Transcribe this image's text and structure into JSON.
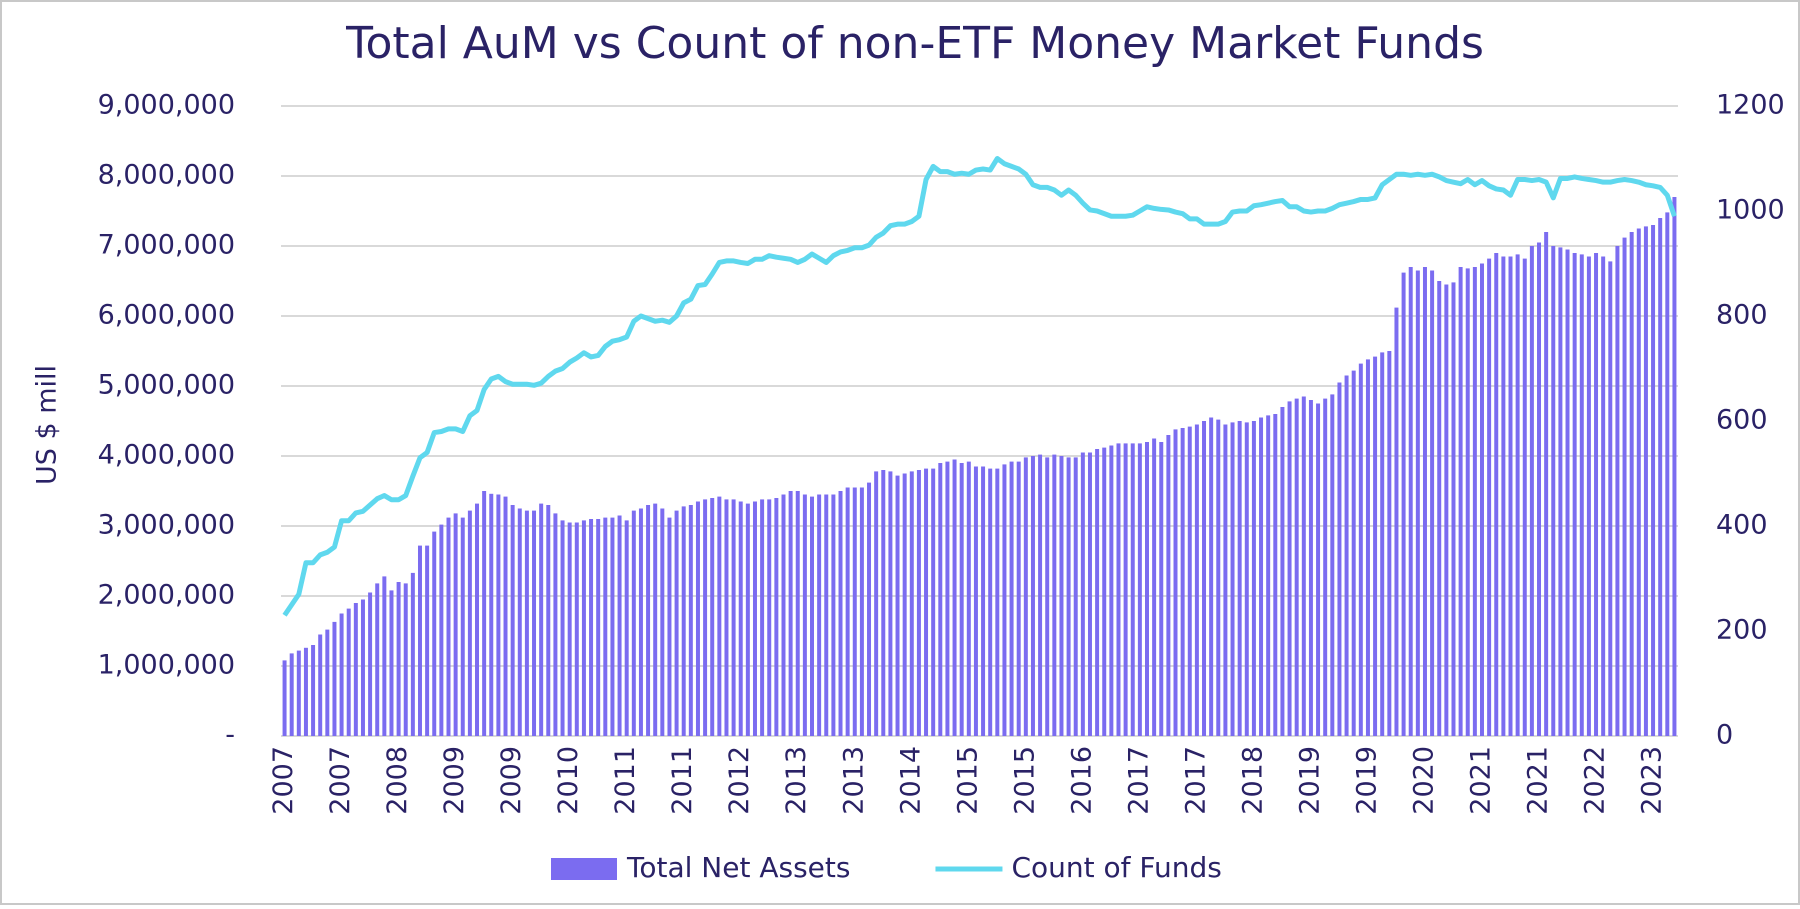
{
  "chart_data": {
    "type": "bar",
    "title": "Total AuM vs Count of non-ETF Money Market Funds",
    "y_label": "US $ mill",
    "categories": [
      "2007",
      null,
      null,
      null,
      null,
      null,
      null,
      null,
      "2007",
      null,
      null,
      null,
      null,
      null,
      null,
      null,
      "2008",
      null,
      null,
      null,
      null,
      null,
      null,
      null,
      "2009",
      null,
      null,
      null,
      null,
      null,
      null,
      null,
      "2009",
      null,
      null,
      null,
      null,
      null,
      null,
      null,
      "2010",
      null,
      null,
      null,
      null,
      null,
      null,
      null,
      "2011",
      null,
      null,
      null,
      null,
      null,
      null,
      null,
      "2011",
      null,
      null,
      null,
      null,
      null,
      null,
      null,
      "2012",
      null,
      null,
      null,
      null,
      null,
      null,
      null,
      "2013",
      null,
      null,
      null,
      null,
      null,
      null,
      null,
      "2013",
      null,
      null,
      null,
      null,
      null,
      null,
      null,
      "2014",
      null,
      null,
      null,
      null,
      null,
      null,
      null,
      "2015",
      null,
      null,
      null,
      null,
      null,
      null,
      null,
      "2015",
      null,
      null,
      null,
      null,
      null,
      null,
      null,
      "2016",
      null,
      null,
      null,
      null,
      null,
      null,
      null,
      "2017",
      null,
      null,
      null,
      null,
      null,
      null,
      null,
      "2017",
      null,
      null,
      null,
      null,
      null,
      null,
      null,
      "2018",
      null,
      null,
      null,
      null,
      null,
      null,
      null,
      "2019",
      null,
      null,
      null,
      null,
      null,
      null,
      null,
      "2019",
      null,
      null,
      null,
      null,
      null,
      null,
      null,
      "2020",
      null,
      null,
      null,
      null,
      null,
      null,
      null,
      "2021",
      null,
      null,
      null,
      null,
      null,
      null,
      null,
      "2021",
      null,
      null,
      null,
      null,
      null,
      null,
      null,
      "2022",
      null,
      null,
      null,
      null,
      null,
      null,
      null,
      "2023",
      null,
      null,
      null
    ],
    "series": [
      {
        "name": "Total Net Assets",
        "type": "bar",
        "color": "#7b6cf0",
        "values": [
          1080000,
          1180000,
          1220000,
          1260000,
          1300000,
          1450000,
          1520000,
          1630000,
          1750000,
          1820000,
          1900000,
          1950000,
          2050000,
          2180000,
          2280000,
          2080000,
          2200000,
          2180000,
          2330000,
          2720000,
          2720000,
          2920000,
          3020000,
          3120000,
          3180000,
          3120000,
          3220000,
          3320000,
          3500000,
          3460000,
          3450000,
          3420000,
          3300000,
          3250000,
          3220000,
          3220000,
          3320000,
          3300000,
          3180000,
          3080000,
          3050000,
          3050000,
          3080000,
          3100000,
          3100000,
          3120000,
          3120000,
          3150000,
          3080000,
          3220000,
          3250000,
          3300000,
          3320000,
          3250000,
          3120000,
          3220000,
          3280000,
          3300000,
          3350000,
          3380000,
          3400000,
          3420000,
          3380000,
          3380000,
          3350000,
          3320000,
          3350000,
          3380000,
          3380000,
          3400000,
          3450000,
          3500000,
          3500000,
          3450000,
          3420000,
          3450000,
          3450000,
          3450000,
          3500000,
          3550000,
          3550000,
          3550000,
          3620000,
          3780000,
          3800000,
          3780000,
          3720000,
          3750000,
          3780000,
          3800000,
          3820000,
          3820000,
          3900000,
          3920000,
          3950000,
          3900000,
          3920000,
          3850000,
          3850000,
          3820000,
          3820000,
          3880000,
          3920000,
          3920000,
          3980000,
          4000000,
          4020000,
          3980000,
          4020000,
          4000000,
          3980000,
          3980000,
          4050000,
          4050000,
          4100000,
          4120000,
          4150000,
          4180000,
          4180000,
          4180000,
          4180000,
          4200000,
          4250000,
          4200000,
          4300000,
          4380000,
          4400000,
          4420000,
          4450000,
          4500000,
          4550000,
          4520000,
          4450000,
          4480000,
          4500000,
          4480000,
          4500000,
          4550000,
          4580000,
          4600000,
          4700000,
          4780000,
          4820000,
          4850000,
          4800000,
          4750000,
          4820000,
          4880000,
          5050000,
          5150000,
          5220000,
          5320000,
          5380000,
          5420000,
          5480000,
          5500000,
          6120000,
          6620000,
          6700000,
          6650000,
          6700000,
          6650000,
          6500000,
          6450000,
          6480000,
          6700000,
          6680000,
          6700000,
          6750000,
          6820000,
          6900000,
          6850000,
          6850000,
          6880000,
          6820000,
          7000000,
          7050000,
          7200000,
          7000000,
          6980000,
          6950000,
          6900000,
          6880000,
          6850000,
          6900000,
          6850000,
          6780000,
          7000000,
          7120000,
          7200000,
          7250000,
          7280000,
          7300000,
          7400000,
          7480000,
          7700000
        ]
      },
      {
        "name": "Count of Funds",
        "type": "line",
        "axis": "y2",
        "color": "#5fd8ee",
        "values": [
          230,
          250,
          270,
          330,
          330,
          345,
          350,
          360,
          410,
          410,
          425,
          428,
          440,
          452,
          458,
          450,
          450,
          458,
          495,
          530,
          540,
          578,
          580,
          585,
          585,
          580,
          610,
          620,
          660,
          680,
          685,
          675,
          670,
          670,
          670,
          668,
          672,
          685,
          695,
          700,
          712,
          720,
          730,
          722,
          725,
          742,
          752,
          755,
          760,
          790,
          800,
          795,
          790,
          792,
          788,
          800,
          825,
          832,
          858,
          860,
          880,
          902,
          905,
          905,
          902,
          900,
          908,
          908,
          915,
          912,
          910,
          908,
          902,
          908,
          918,
          910,
          902,
          915,
          922,
          925,
          930,
          930,
          935,
          950,
          958,
          972,
          975,
          975,
          980,
          990,
          1060,
          1085,
          1075,
          1075,
          1070,
          1072,
          1070,
          1078,
          1080,
          1078,
          1100,
          1090,
          1085,
          1080,
          1070,
          1050,
          1045,
          1045,
          1040,
          1030,
          1040,
          1030,
          1015,
          1002,
          1000,
          995,
          990,
          990,
          990,
          992,
          1000,
          1008,
          1005,
          1003,
          1002,
          998,
          995,
          985,
          985,
          975,
          975,
          975,
          980,
          998,
          1000,
          1000,
          1010,
          1012,
          1015,
          1018,
          1020,
          1008,
          1008,
          1000,
          998,
          1000,
          1000,
          1005,
          1012,
          1015,
          1018,
          1022,
          1022,
          1025,
          1050,
          1060,
          1070,
          1070,
          1068,
          1070,
          1068,
          1070,
          1065,
          1058,
          1055,
          1052,
          1060,
          1050,
          1058,
          1048,
          1042,
          1040,
          1030,
          1060,
          1060,
          1058,
          1060,
          1055,
          1025,
          1062,
          1062,
          1065,
          1062,
          1060,
          1058,
          1055,
          1055,
          1058,
          1060,
          1058,
          1055,
          1050,
          1048,
          1045,
          1030,
          990
        ]
      }
    ],
    "ylim": [
      0,
      9000000
    ],
    "yticks": [
      {
        "value": 0,
        "label": "-"
      },
      {
        "value": 1000000,
        "label": "1,000,000"
      },
      {
        "value": 2000000,
        "label": "2,000,000"
      },
      {
        "value": 3000000,
        "label": "3,000,000"
      },
      {
        "value": 4000000,
        "label": "4,000,000"
      },
      {
        "value": 5000000,
        "label": "5,000,000"
      },
      {
        "value": 6000000,
        "label": "6,000,000"
      },
      {
        "value": 7000000,
        "label": "7,000,000"
      },
      {
        "value": 8000000,
        "label": "8,000,000"
      },
      {
        "value": 9000000,
        "label": "9,000,000"
      }
    ],
    "y2lim": [
      0,
      1200
    ],
    "y2ticks": [
      0,
      200,
      400,
      600,
      800,
      1000,
      1200
    ],
    "grid": true,
    "legend": "bottom"
  }
}
